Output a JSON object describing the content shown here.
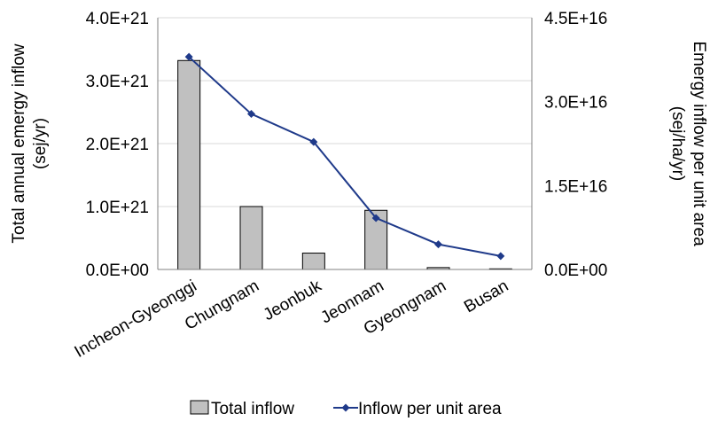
{
  "chart_data": {
    "type": "bar+line",
    "categories": [
      "Incheon-Gyeonggi",
      "Chungnam",
      "Jeonbuk",
      "Jeonnam",
      "Gyeongnam",
      "Busan"
    ],
    "series": [
      {
        "name": "Total inflow",
        "type": "bar",
        "axis": "left",
        "values": [
          3.32e+21,
          1e+21,
          2.6e+20,
          9.4e+20,
          3e+19,
          1e+19
        ],
        "color": "#c0c0c0"
      },
      {
        "name": "Inflow per unit area",
        "type": "line",
        "axis": "right",
        "values": [
          3.8e+16,
          2.78e+16,
          2.28e+16,
          9200000000000000.0,
          4500000000000000.0,
          2400000000000000.0
        ],
        "color": "#1f3a8a"
      }
    ],
    "ylabel_left": "Total annual emergy inflow\n(sej/yr)",
    "ylabel_right": "Emergy inflow per unit area\n(sej/ha/yr)",
    "ylim_left": [
      0,
      4e+21
    ],
    "ylim_right": [
      0,
      4.5e+16
    ],
    "yticks_left": [
      "0.0E+00",
      "1.0E+21",
      "2.0E+21",
      "3.0E+21",
      "4.0E+21"
    ],
    "yticks_right": [
      "0.0E+00",
      "1.5E+16",
      "3.0E+16",
      "4.5E+16"
    ],
    "grid": true,
    "legend_position": "bottom"
  }
}
